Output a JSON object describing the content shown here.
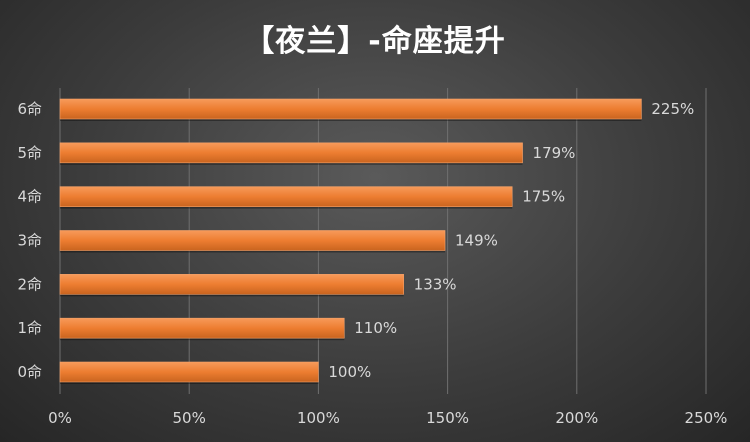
{
  "chart_data": {
    "type": "bar",
    "orientation": "horizontal",
    "title": "【夜兰】-命座提升",
    "categories": [
      "0命",
      "1命",
      "2命",
      "3命",
      "4命",
      "5命",
      "6命"
    ],
    "values": [
      100,
      110,
      133,
      149,
      175,
      179,
      225
    ],
    "value_labels": [
      "100%",
      "110%",
      "133%",
      "149%",
      "175%",
      "179%",
      "225%"
    ],
    "xlim": [
      0,
      250
    ],
    "x_ticks": [
      0,
      50,
      100,
      150,
      200,
      250
    ],
    "x_tick_labels": [
      "0%",
      "50%",
      "100%",
      "150%",
      "200%",
      "250%"
    ],
    "grid": true,
    "legend": "none",
    "bar_color": "#ed7d31",
    "background_color": "#3c3c3c",
    "text_color": "#d9d9d9"
  }
}
